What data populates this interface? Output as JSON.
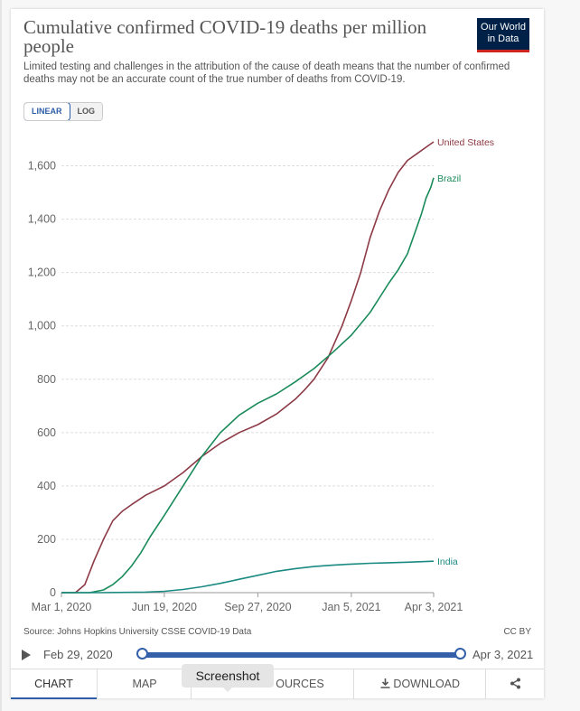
{
  "title": "Cumulative confirmed COVID-19 deaths per million people",
  "subtitle": "Limited testing and challenges in the attribution of the cause of death means that the number of confirmed deaths may not be an accurate count of the true number of deaths from COVID-19.",
  "logo": {
    "line1": "Our World",
    "line2": "in Data"
  },
  "scale_toggle": {
    "linear": "LINEAR",
    "log": "LOG"
  },
  "source": "Source: Johns Hopkins University CSSE COVID-19 Data",
  "license": "CC BY",
  "timeline": {
    "start": "Feb 29, 2020",
    "end": "Apr 3, 2021"
  },
  "tabs": {
    "chart": "CHART",
    "map": "MAP",
    "sources": "OURCES",
    "download": "DOWNLOAD"
  },
  "tooltip": "Screenshot",
  "colors": {
    "us": "#8c3a45",
    "brazil": "#1a8a5a",
    "india": "#1a8a82",
    "accent": "#3360a9"
  },
  "chart_data": {
    "type": "line",
    "title": "Cumulative confirmed COVID-19 deaths per million people",
    "xlabel": "",
    "ylabel": "",
    "x_ticks": [
      "Mar 1, 2020",
      "Jun 19, 2020",
      "Sep 27, 2020",
      "Jan 5, 2021",
      "Apr 3, 2021"
    ],
    "x_tick_days": [
      0,
      110,
      210,
      310,
      398
    ],
    "xlim": [
      0,
      398
    ],
    "ylim": [
      0,
      1700
    ],
    "y_ticks": [
      0,
      200,
      400,
      600,
      800,
      1000,
      1200,
      1400,
      1600
    ],
    "y_tick_labels": [
      "0",
      "200",
      "400",
      "600",
      "800",
      "1,000",
      "1,200",
      "1,400",
      "1,600"
    ],
    "grid": true,
    "series": [
      {
        "name": "United States",
        "color": "#8c3a45",
        "x": [
          0,
          15,
          25,
          35,
          45,
          55,
          65,
          75,
          90,
          110,
          130,
          150,
          170,
          190,
          210,
          230,
          250,
          260,
          270,
          285,
          300,
          310,
          320,
          330,
          340,
          350,
          360,
          370,
          380,
          390,
          398
        ],
        "y": [
          0,
          0,
          30,
          120,
          200,
          270,
          305,
          330,
          365,
          400,
          450,
          510,
          560,
          600,
          630,
          670,
          725,
          760,
          800,
          880,
          1000,
          1095,
          1200,
          1330,
          1430,
          1510,
          1575,
          1620,
          1645,
          1670,
          1690
        ]
      },
      {
        "name": "Brazil",
        "color": "#1a8a5a",
        "x": [
          0,
          30,
          45,
          55,
          65,
          75,
          85,
          95,
          110,
          130,
          150,
          170,
          190,
          210,
          230,
          250,
          270,
          290,
          310,
          330,
          350,
          360,
          370,
          380,
          385,
          390,
          395,
          398
        ],
        "y": [
          0,
          0,
          10,
          30,
          60,
          100,
          150,
          210,
          290,
          400,
          510,
          600,
          665,
          710,
          745,
          790,
          840,
          900,
          965,
          1050,
          1160,
          1210,
          1270,
          1370,
          1420,
          1480,
          1520,
          1555
        ]
      },
      {
        "name": "India",
        "color": "#1a8a82",
        "x": [
          0,
          40,
          70,
          90,
          110,
          130,
          150,
          170,
          190,
          210,
          230,
          250,
          270,
          290,
          310,
          330,
          350,
          370,
          398
        ],
        "y": [
          0,
          0,
          1,
          2,
          5,
          12,
          22,
          35,
          50,
          65,
          80,
          90,
          98,
          103,
          107,
          110,
          112,
          114,
          118
        ]
      }
    ]
  }
}
